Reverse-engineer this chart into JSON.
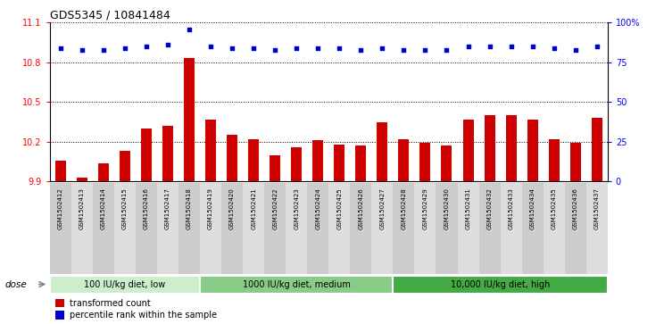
{
  "title": "GDS5345 / 10841484",
  "samples": [
    "GSM1502412",
    "GSM1502413",
    "GSM1502414",
    "GSM1502415",
    "GSM1502416",
    "GSM1502417",
    "GSM1502418",
    "GSM1502419",
    "GSM1502420",
    "GSM1502421",
    "GSM1502422",
    "GSM1502423",
    "GSM1502424",
    "GSM1502425",
    "GSM1502426",
    "GSM1502427",
    "GSM1502428",
    "GSM1502429",
    "GSM1502430",
    "GSM1502431",
    "GSM1502432",
    "GSM1502433",
    "GSM1502434",
    "GSM1502435",
    "GSM1502436",
    "GSM1502437"
  ],
  "bar_values": [
    10.06,
    9.93,
    10.04,
    10.13,
    10.3,
    10.32,
    10.83,
    10.37,
    10.25,
    10.22,
    10.1,
    10.16,
    10.21,
    10.18,
    10.17,
    10.35,
    10.22,
    10.19,
    10.17,
    10.37,
    10.4,
    10.4,
    10.37,
    10.22,
    10.19,
    10.38
  ],
  "percentile_values": [
    84,
    83,
    83,
    84,
    85,
    86,
    96,
    85,
    84,
    84,
    83,
    84,
    84,
    84,
    83,
    84,
    83,
    83,
    83,
    85,
    85,
    85,
    85,
    84,
    83,
    85
  ],
  "bar_color": "#cc0000",
  "dot_color": "#0000cc",
  "ylim_left": [
    9.9,
    11.1
  ],
  "ylim_right": [
    0,
    100
  ],
  "yticks_left": [
    9.9,
    10.2,
    10.5,
    10.8,
    11.1
  ],
  "yticks_right": [
    0,
    25,
    50,
    75,
    100
  ],
  "grid_values": [
    10.2,
    10.5,
    10.8
  ],
  "groups": [
    {
      "label": "100 IU/kg diet, low",
      "start": 0,
      "end": 7,
      "color": "#cceecc"
    },
    {
      "label": "1000 IU/kg diet, medium",
      "start": 7,
      "end": 16,
      "color": "#88cc88"
    },
    {
      "label": "10,000 IU/kg diet, high",
      "start": 16,
      "end": 26,
      "color": "#44aa44"
    }
  ],
  "dose_label": "dose",
  "legend_bar_label": "transformed count",
  "legend_dot_label": "percentile rank within the sample",
  "fig_bg": "#ffffff",
  "plot_bg": "#ffffff",
  "xtick_bg_odd": "#cccccc",
  "xtick_bg_even": "#dddddd"
}
